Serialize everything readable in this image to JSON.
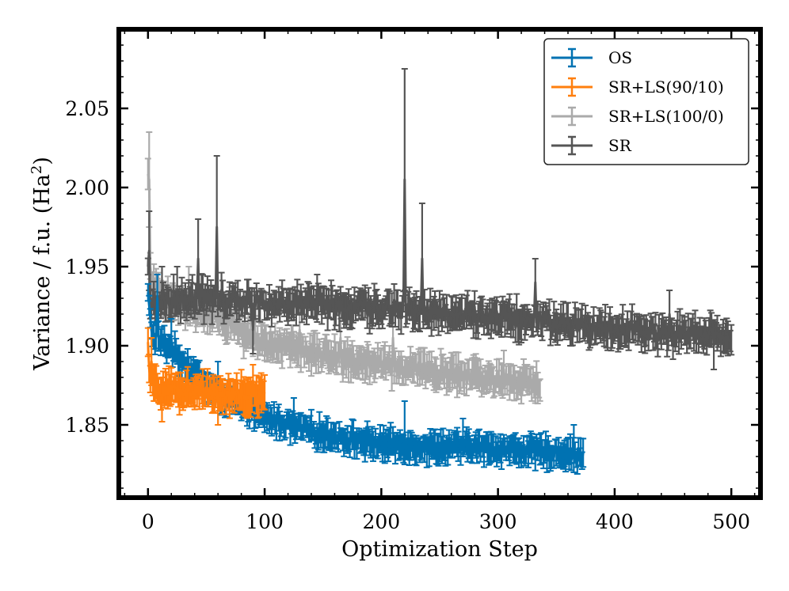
{
  "chart_data": {
    "type": "line",
    "title": "",
    "xlabel": "Optimization Step",
    "ylabel_main": "Variance / f.u. (Ha",
    "ylabel_sup": "2",
    "ylabel_close": ")",
    "xlim": [
      -25,
      525
    ],
    "ylim": [
      1.804,
      2.1
    ],
    "xticks": [
      0,
      100,
      200,
      300,
      400,
      500
    ],
    "xtick_labels": [
      "0",
      "100",
      "200",
      "300",
      "400",
      "500"
    ],
    "yticks": [
      1.85,
      1.9,
      1.95,
      2.0,
      2.05
    ],
    "ytick_labels": [
      "1.85",
      "1.90",
      "1.95",
      "2.00",
      "2.05"
    ],
    "legend_position": "top-right",
    "series": [
      {
        "name": "OS",
        "color": "#0072B2",
        "end_step": 373,
        "knots": [
          [
            0,
            1.932
          ],
          [
            2,
            1.915
          ],
          [
            5,
            1.905
          ],
          [
            10,
            1.903
          ],
          [
            20,
            1.898
          ],
          [
            30,
            1.89
          ],
          [
            40,
            1.883
          ],
          [
            50,
            1.875
          ],
          [
            60,
            1.87
          ],
          [
            70,
            1.865
          ],
          [
            80,
            1.862
          ],
          [
            90,
            1.858
          ],
          [
            100,
            1.855
          ],
          [
            120,
            1.85
          ],
          [
            140,
            1.846
          ],
          [
            160,
            1.843
          ],
          [
            180,
            1.84
          ],
          [
            200,
            1.838
          ],
          [
            220,
            1.837
          ],
          [
            240,
            1.836
          ],
          [
            260,
            1.836
          ],
          [
            280,
            1.836
          ],
          [
            300,
            1.835
          ],
          [
            320,
            1.834
          ],
          [
            340,
            1.833
          ],
          [
            360,
            1.832
          ],
          [
            373,
            1.83
          ]
        ],
        "noise": 0.004,
        "err": 0.007,
        "spikes": [
          [
            8,
            1.93,
            0.015
          ],
          [
            20,
            1.905,
            0.012
          ],
          [
            60,
            1.88,
            0.01
          ],
          [
            125,
            1.855,
            0.012
          ],
          [
            220,
            1.845,
            0.02
          ],
          [
            270,
            1.842,
            0.012
          ],
          [
            365,
            1.835,
            0.015
          ]
        ]
      },
      {
        "name": "SR+LS(90/10)",
        "color": "#FF7F0E",
        "end_step": 100,
        "knots": [
          [
            0,
            1.9
          ],
          [
            1,
            1.882
          ],
          [
            3,
            1.875
          ],
          [
            10,
            1.873
          ],
          [
            20,
            1.872
          ],
          [
            40,
            1.871
          ],
          [
            60,
            1.87
          ],
          [
            80,
            1.869
          ],
          [
            100,
            1.868
          ]
        ],
        "noise": 0.004,
        "err": 0.009,
        "spikes": [
          [
            3,
            1.89,
            0.015
          ],
          [
            12,
            1.866,
            0.014
          ],
          [
            60,
            1.862,
            0.012
          ],
          [
            90,
            1.878,
            0.01
          ]
        ]
      },
      {
        "name": "SR+LS(100/0)",
        "color": "#AAAAAA",
        "end_step": 336,
        "knots": [
          [
            0,
            2.005
          ],
          [
            1,
            1.96
          ],
          [
            3,
            1.945
          ],
          [
            6,
            1.935
          ],
          [
            15,
            1.93
          ],
          [
            30,
            1.925
          ],
          [
            50,
            1.92
          ],
          [
            70,
            1.912
          ],
          [
            90,
            1.905
          ],
          [
            110,
            1.9
          ],
          [
            130,
            1.897
          ],
          [
            160,
            1.893
          ],
          [
            200,
            1.888
          ],
          [
            240,
            1.884
          ],
          [
            280,
            1.88
          ],
          [
            320,
            1.877
          ],
          [
            336,
            1.875
          ]
        ],
        "noise": 0.005,
        "err": 0.008,
        "spikes": [
          [
            1,
            2.005,
            0.03
          ],
          [
            35,
            1.935,
            0.015
          ],
          [
            70,
            1.925,
            0.012
          ],
          [
            130,
            1.91,
            0.015
          ],
          [
            165,
            1.905,
            0.012
          ],
          [
            210,
            1.905,
            0.015
          ],
          [
            305,
            1.885,
            0.012
          ]
        ]
      },
      {
        "name": "SR",
        "color": "#555555",
        "end_step": 500,
        "knots": [
          [
            0,
            1.945
          ],
          [
            3,
            1.925
          ],
          [
            10,
            1.928
          ],
          [
            30,
            1.93
          ],
          [
            60,
            1.93
          ],
          [
            100,
            1.928
          ],
          [
            150,
            1.926
          ],
          [
            200,
            1.924
          ],
          [
            250,
            1.921
          ],
          [
            300,
            1.918
          ],
          [
            350,
            1.915
          ],
          [
            400,
            1.911
          ],
          [
            450,
            1.908
          ],
          [
            500,
            1.905
          ]
        ],
        "noise": 0.006,
        "err": 0.008,
        "spikes": [
          [
            1,
            1.96,
            0.025
          ],
          [
            12,
            1.935,
            0.015
          ],
          [
            25,
            1.935,
            0.015
          ],
          [
            43,
            1.955,
            0.025
          ],
          [
            59,
            1.975,
            0.045
          ],
          [
            90,
            1.91,
            0.015
          ],
          [
            145,
            1.93,
            0.015
          ],
          [
            220,
            2.005,
            0.07
          ],
          [
            235,
            1.955,
            0.035
          ],
          [
            332,
            1.94,
            0.015
          ],
          [
            447,
            1.92,
            0.015
          ],
          [
            485,
            1.9,
            0.015
          ]
        ]
      }
    ]
  }
}
